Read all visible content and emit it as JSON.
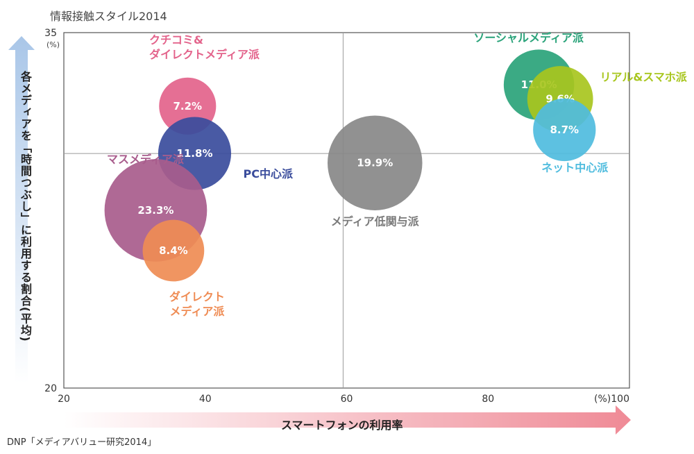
{
  "chart_data": {
    "type": "scatter",
    "title": "情報接触スタイル2014",
    "xlabel": "スマートフォンの利用率",
    "ylabel": "各メディアを「時間つぶし」に利用する割合(平均)",
    "xlim": [
      20,
      100
    ],
    "ylim": [
      20,
      35
    ],
    "x_ticks": [
      "20",
      "40",
      "60",
      "80",
      "(%)100"
    ],
    "y_ticks": [
      "20",
      "35"
    ],
    "y_unit": "(%)",
    "grid": false,
    "quadrant_lines": {
      "x": 59.5,
      "y": 29.9
    },
    "series": [
      {
        "name": "クチコミ&ダイレクトメディア派",
        "label": "7.2%",
        "share": 7.2,
        "x": 37.5,
        "y": 31.9,
        "color": "#e3638b"
      },
      {
        "name": "PC中心派",
        "label": "11.8%",
        "share": 11.8,
        "x": 38.5,
        "y": 29.9,
        "color": "#3a4c9c"
      },
      {
        "name": "メディア低関与派",
        "label": "19.9%",
        "share": 19.9,
        "x": 64.0,
        "y": 29.5,
        "color": "#888888"
      },
      {
        "name": "ソーシャルメディア派",
        "label": "11.0%",
        "share": 11.0,
        "x": 87.2,
        "y": 32.8,
        "color": "#2aa37a"
      },
      {
        "name": "リアル&スマホ派",
        "label": "9.6%",
        "share": 9.6,
        "x": 90.2,
        "y": 32.2,
        "color": "#a8c61e"
      },
      {
        "name": "ネット中心派",
        "label": "8.7%",
        "share": 8.7,
        "x": 90.8,
        "y": 30.9,
        "color": "#4fbcde"
      },
      {
        "name": "マスメディア派",
        "label": "23.3%",
        "share": 23.3,
        "x": 33.0,
        "y": 27.5,
        "color": "#a85c8c"
      },
      {
        "name": "ダイレクトメディア派",
        "label": "8.4%",
        "share": 8.4,
        "x": 35.5,
        "y": 25.8,
        "color": "#ef8c54"
      }
    ]
  },
  "source": "DNP「メディアバリュー研究2014」"
}
